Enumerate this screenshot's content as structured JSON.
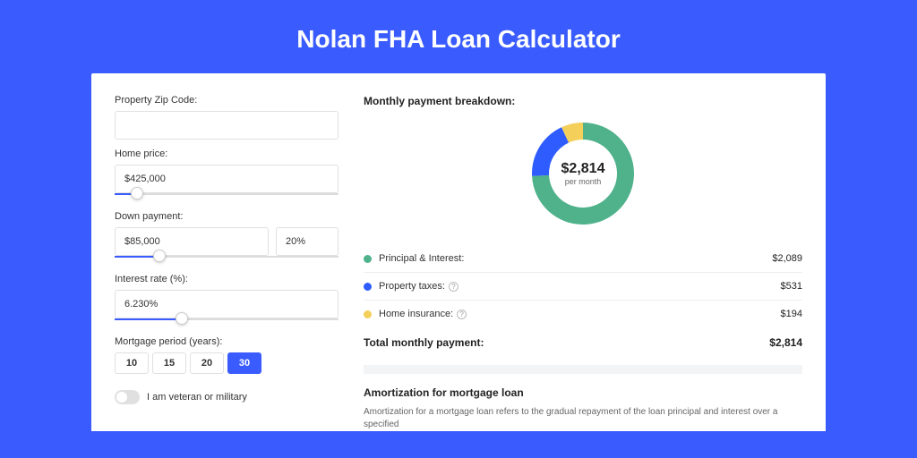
{
  "title": "Nolan FHA Loan Calculator",
  "colors": {
    "brand": "#3a5cff",
    "page_bg": "#3a5cff",
    "card_bg": "#ffffff"
  },
  "form": {
    "zip": {
      "label": "Property Zip Code:",
      "value": ""
    },
    "home_price": {
      "label": "Home price:",
      "value": "$425,000",
      "slider_pct": 10
    },
    "down_payment": {
      "label": "Down payment:",
      "value": "$85,000",
      "pct_value": "20%",
      "slider_pct": 20
    },
    "interest_rate": {
      "label": "Interest rate (%):",
      "value": "6.230%",
      "slider_pct": 30
    },
    "mortgage_period": {
      "label": "Mortgage period (years):",
      "options": [
        "10",
        "15",
        "20",
        "30"
      ],
      "selected": "30"
    },
    "veteran": {
      "label": "I am veteran or military",
      "checked": false
    }
  },
  "breakdown": {
    "title": "Monthly payment breakdown:",
    "donut": {
      "amount": "$2,814",
      "sub": "per month",
      "type": "donut",
      "size": 120,
      "thickness": 19,
      "slices": [
        {
          "label": "Principal & Interest",
          "value": 2089,
          "color": "#4fb28b",
          "pct": 74.2
        },
        {
          "label": "Property taxes",
          "value": 531,
          "color": "#2f5cff",
          "pct": 18.9
        },
        {
          "label": "Home insurance",
          "value": 194,
          "color": "#f4cf5a",
          "pct": 6.9
        }
      ]
    },
    "items": [
      {
        "dot": "#4fb28b",
        "label": "Principal & Interest:",
        "value": "$2,089",
        "info": false
      },
      {
        "dot": "#2f5cff",
        "label": "Property taxes:",
        "value": "$531",
        "info": true
      },
      {
        "dot": "#f4cf5a",
        "label": "Home insurance:",
        "value": "$194",
        "info": true
      }
    ],
    "total": {
      "label": "Total monthly payment:",
      "value": "$2,814"
    }
  },
  "amortization": {
    "title": "Amortization for mortgage loan",
    "text": "Amortization for a mortgage loan refers to the gradual repayment of the loan principal and interest over a specified"
  }
}
